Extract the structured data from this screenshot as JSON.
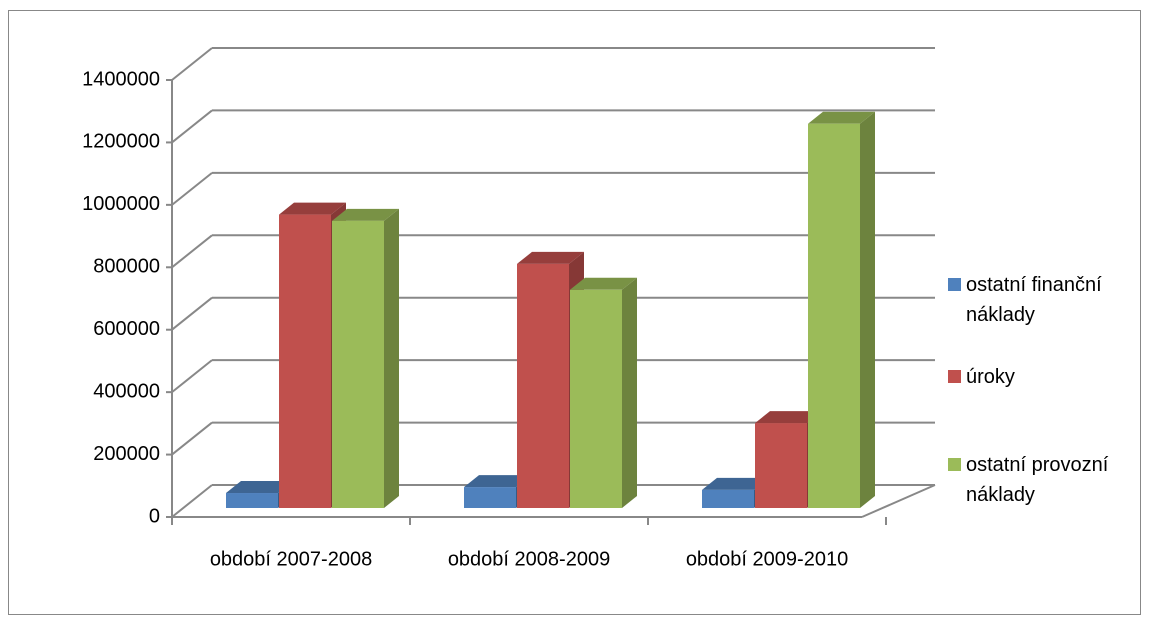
{
  "chart_data": {
    "type": "bar3d",
    "categories": [
      "období 2007-2008",
      "období 2008-2009",
      "období 2009-2010"
    ],
    "series": [
      {
        "name": "ostatní finanční náklady",
        "color": "#4f81bd",
        "values": [
          48000,
          67000,
          58000
        ]
      },
      {
        "name": "úroky",
        "color": "#c0504d",
        "values": [
          940000,
          782000,
          272000
        ]
      },
      {
        "name": "ostatní provozní náklady",
        "color": "#9bbb59",
        "values": [
          920000,
          699000,
          1231000
        ]
      }
    ],
    "ylim": [
      0,
      1400000
    ],
    "yticks": [
      0,
      200000,
      400000,
      600000,
      800000,
      1000000,
      1200000,
      1400000
    ],
    "grid": true,
    "legend": "right"
  }
}
